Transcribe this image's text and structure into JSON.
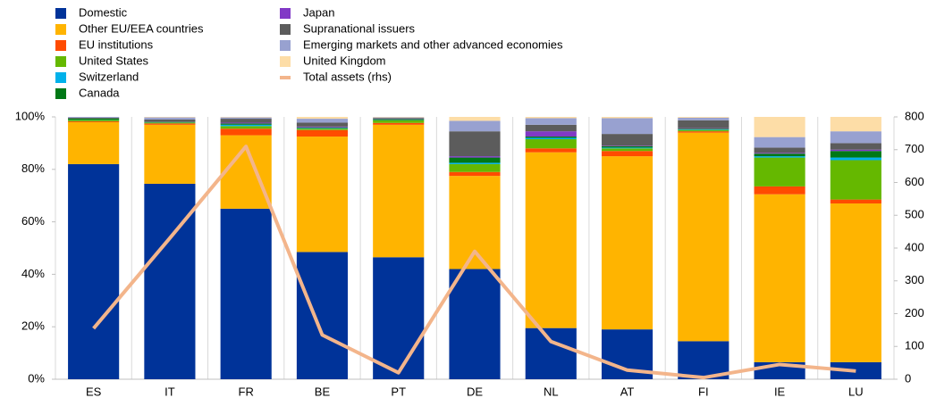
{
  "chart_data": {
    "type": "bar",
    "stacked": true,
    "categories": [
      "ES",
      "IT",
      "FR",
      "BE",
      "PT",
      "DE",
      "NL",
      "AT",
      "FI",
      "IE",
      "LU"
    ],
    "series": [
      {
        "name": "Domestic",
        "color": "#003399",
        "values": [
          82,
          74.5,
          65,
          48.5,
          46.5,
          42,
          19.5,
          19,
          14.5,
          6.5,
          6.5
        ]
      },
      {
        "name": "Other EU/EEA countries",
        "color": "#ffb400",
        "values": [
          16,
          22.5,
          28,
          44,
          50.5,
          35.5,
          67,
          66,
          79.5,
          64,
          60.5
        ]
      },
      {
        "name": "EU institutions",
        "color": "#ff4b00",
        "values": [
          0.3,
          0.5,
          2.5,
          2.5,
          0.7,
          1.5,
          1.5,
          2,
          0.5,
          3,
          1.5
        ]
      },
      {
        "name": "United States",
        "color": "#65b800",
        "values": [
          0.5,
          0.3,
          1,
          0.5,
          1,
          3,
          3.5,
          1,
          0.5,
          11,
          15
        ]
      },
      {
        "name": "Switzerland",
        "color": "#00b1ea",
        "values": [
          0.1,
          0.1,
          0.5,
          0.2,
          0.1,
          0.5,
          0.5,
          0.3,
          0.2,
          0.5,
          1
        ]
      },
      {
        "name": "Canada",
        "color": "#007816",
        "values": [
          0.5,
          0.2,
          0.5,
          0.3,
          0.3,
          2,
          0.5,
          0.5,
          0.3,
          1,
          2.5
        ]
      },
      {
        "name": "Japan",
        "color": "#8139c6",
        "values": [
          0,
          0.1,
          0.3,
          0.3,
          0,
          0.5,
          2,
          0.2,
          0.2,
          0.3,
          0.5
        ]
      },
      {
        "name": "Supranational issuers",
        "color": "#5c5c5c",
        "values": [
          0.3,
          0.8,
          1.5,
          1.5,
          0.4,
          9.5,
          2.5,
          4.5,
          3,
          2,
          2.5
        ]
      },
      {
        "name": "Emerging markets and other advanced economies",
        "color": "#98a1d0",
        "values": [
          0.3,
          0.8,
          0.5,
          1.5,
          0.3,
          4,
          2.5,
          6,
          1,
          4,
          4.5
        ]
      },
      {
        "name": "United Kingdom",
        "color": "#fddda7",
        "values": [
          0,
          0.2,
          0.2,
          0.7,
          0.2,
          1.5,
          0.5,
          0.5,
          0.3,
          7.7,
          5.5
        ]
      },
      {
        "name": "Total assets (rhs)",
        "color": "#f3b58b",
        "axis": "y2",
        "values": [
          155,
          430,
          710,
          135,
          20,
          390,
          115,
          28,
          5,
          45,
          25
        ]
      }
    ],
    "ylim": [
      0,
      100
    ],
    "yticks": [
      {
        "value": 0,
        "label": "0%"
      },
      {
        "value": 20,
        "label": "20%"
      },
      {
        "value": 40,
        "label": "40%"
      },
      {
        "value": 60,
        "label": "60%"
      },
      {
        "value": 80,
        "label": "80%"
      },
      {
        "value": 100,
        "label": "100%"
      }
    ],
    "y2lim": [
      0,
      800
    ],
    "y2ticks": [
      0,
      100,
      200,
      300,
      400,
      500,
      600,
      700,
      800
    ]
  }
}
